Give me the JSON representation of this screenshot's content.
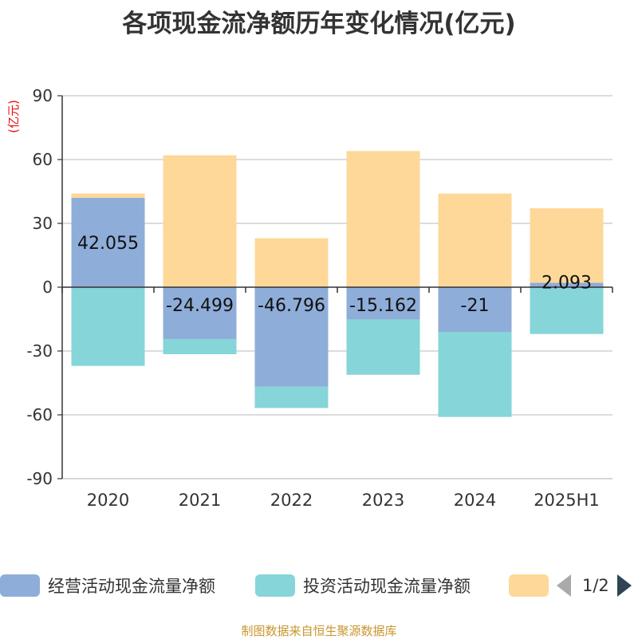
{
  "chart_data": {
    "type": "bar",
    "stacked": true,
    "title": "各项现金流净额历年变化情况(亿元)",
    "ylabel": "(亿元)",
    "xlabel": "",
    "ylim": [
      -90,
      90
    ],
    "yticks": [
      90,
      60,
      30,
      0,
      -30,
      -60,
      -90
    ],
    "grid": true,
    "legend_position": "bottom",
    "categories": [
      "2020",
      "2021",
      "2022",
      "2023",
      "2024",
      "2025H1"
    ],
    "series": [
      {
        "name": "经营活动现金流量净额",
        "color": "#8fadd9",
        "values": [
          42.055,
          -24.499,
          -46.796,
          -15.162,
          -21,
          2.093
        ],
        "labels": [
          "42.055",
          "-24.499",
          "-46.796",
          "-15.162",
          "-21",
          "2.093"
        ]
      },
      {
        "name": "投资活动现金流量净额",
        "color": "#86d5d8",
        "values": [
          -37,
          -7,
          -10,
          -26,
          -40,
          -22
        ]
      },
      {
        "name": "",
        "color": "#fed898",
        "values": [
          2,
          62,
          23,
          64,
          44,
          35
        ]
      }
    ]
  },
  "legend": {
    "pager": "1/2"
  },
  "source_note": "制图数据来自恒生聚源数据库"
}
